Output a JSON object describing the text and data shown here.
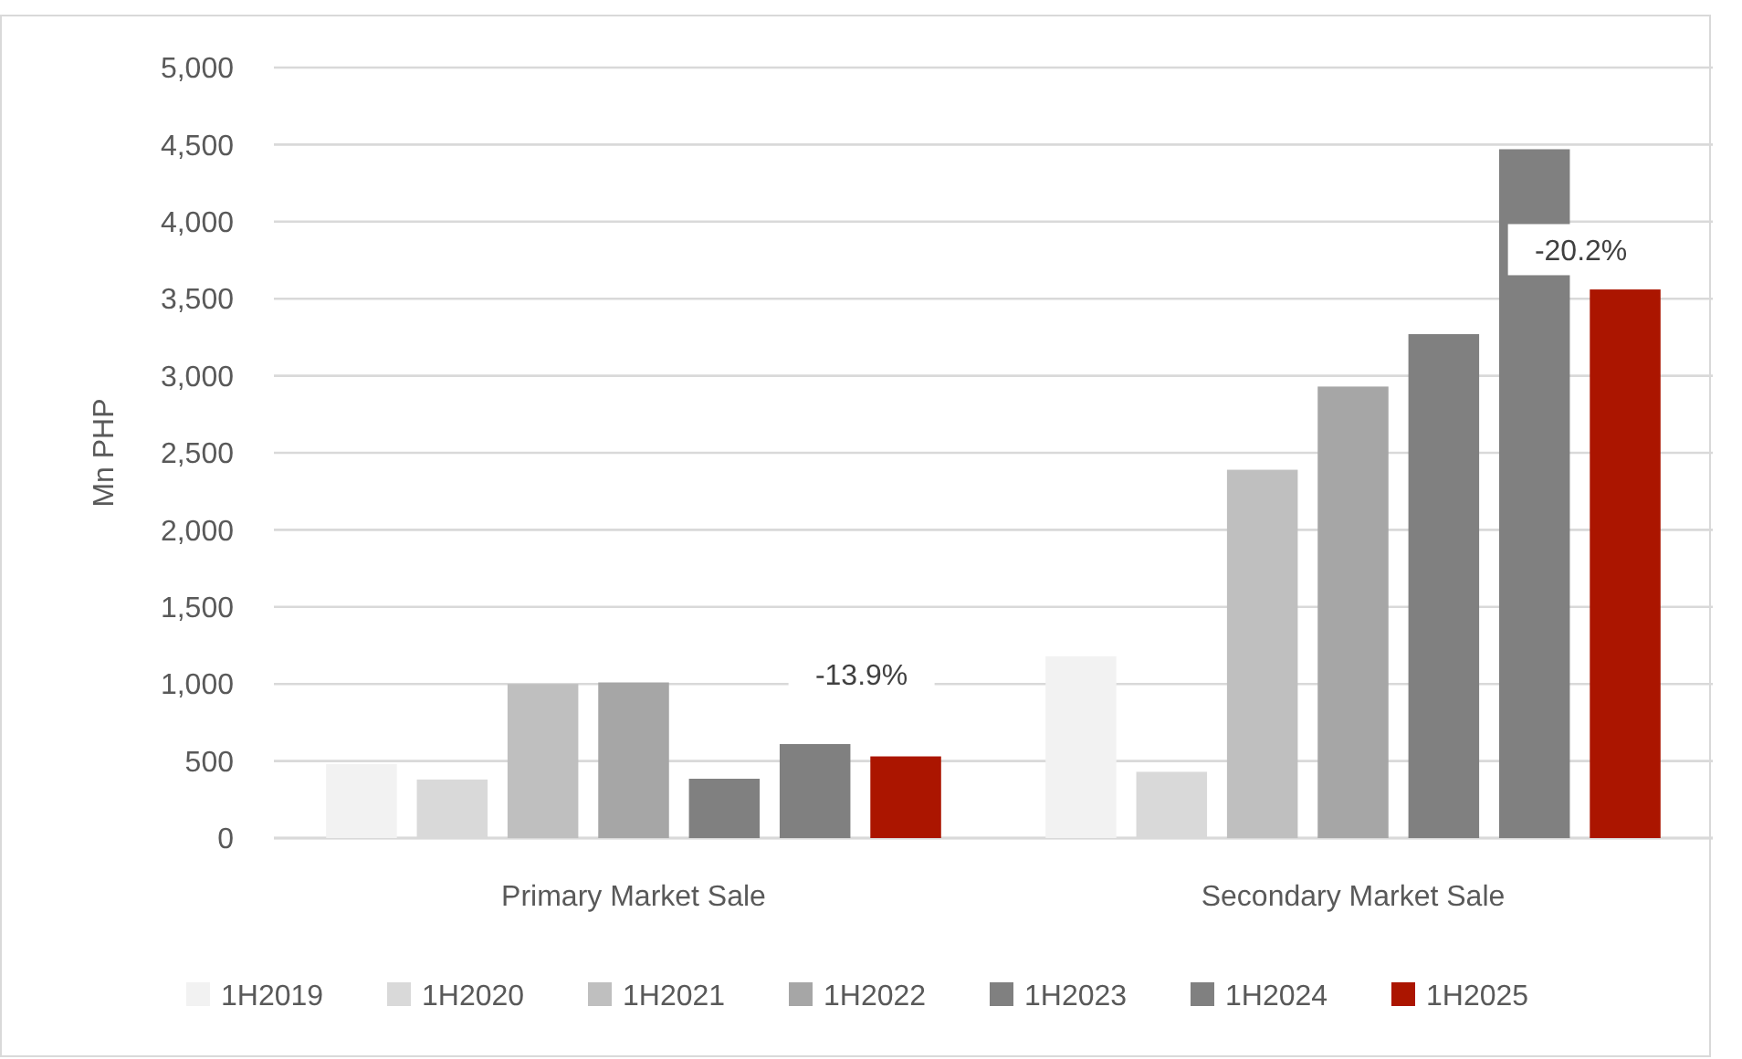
{
  "chart_data": {
    "type": "bar",
    "ylabel": "Mn PHP",
    "categories": [
      "Primary Market Sale",
      "Secondary Market Sale"
    ],
    "series": [
      {
        "name": "1H2019",
        "color": "#f2f2f2",
        "values": [
          480,
          1180
        ]
      },
      {
        "name": "1H2020",
        "color": "#d9d9d9",
        "values": [
          380,
          430
        ]
      },
      {
        "name": "1H2021",
        "color": "#bfbfbf",
        "values": [
          1000,
          2390
        ]
      },
      {
        "name": "1H2022",
        "color": "#a6a6a6",
        "values": [
          1010,
          2930
        ]
      },
      {
        "name": "1H2023",
        "color": "#808080",
        "values": [
          385,
          3270
        ]
      },
      {
        "name": "1H2024",
        "color": "#808080",
        "values": [
          610,
          4470
        ]
      },
      {
        "name": "1H2025",
        "color": "#ab1500",
        "values": [
          530,
          3560
        ]
      }
    ],
    "ylim": [
      0,
      5000
    ],
    "yticks": [
      {
        "value": 0,
        "label": "0"
      },
      {
        "value": 500,
        "label": "500"
      },
      {
        "value": 1000,
        "label": "1,000"
      },
      {
        "value": 1500,
        "label": "1,500"
      },
      {
        "value": 2000,
        "label": "2,000"
      },
      {
        "value": 2500,
        "label": "2,500"
      },
      {
        "value": 3000,
        "label": "3,000"
      },
      {
        "value": 3500,
        "label": "3,500"
      },
      {
        "value": 4000,
        "label": "4,000"
      },
      {
        "value": 4500,
        "label": "4,500"
      },
      {
        "value": 5000,
        "label": "5,000"
      }
    ],
    "grid": "y",
    "legend": "bottom",
    "annotations": [
      "-13.9%",
      "-20.2%"
    ]
  }
}
